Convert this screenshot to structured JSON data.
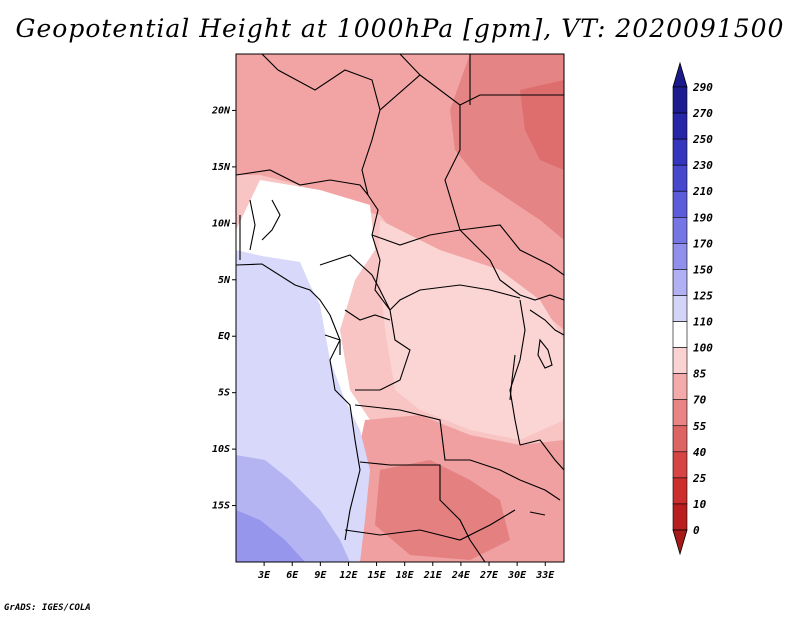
{
  "title": "Geopotential Height at 1000hPa [gpm], VT: 2020091500",
  "credit": "GrADS: IGES/COLA",
  "map": {
    "lat_labels": [
      "20N",
      "15N",
      "10N",
      "5N",
      "EQ",
      "5S",
      "10S",
      "15S"
    ],
    "lat_values": [
      20,
      15,
      10,
      5,
      0,
      -5,
      -10,
      -15
    ],
    "lon_labels": [
      "3E",
      "6E",
      "9E",
      "12E",
      "15E",
      "18E",
      "21E",
      "24E",
      "27E",
      "30E",
      "33E"
    ],
    "lon_values": [
      3,
      6,
      9,
      12,
      15,
      18,
      21,
      24,
      27,
      30,
      33
    ],
    "lon_range": [
      0,
      35
    ],
    "lat_range": [
      -20,
      25
    ]
  },
  "colorbar": {
    "labels": [
      "290",
      "270",
      "250",
      "230",
      "210",
      "190",
      "170",
      "150",
      "125",
      "110",
      "100",
      "85",
      "70",
      "55",
      "40",
      "25",
      "10",
      "0"
    ],
    "colors_top_to_bottom": [
      "#1c1c8e",
      "#2626a8",
      "#3535bd",
      "#4848ce",
      "#5d5ddb",
      "#7575e4",
      "#9090ec",
      "#b0b0f2",
      "#d4d4f8",
      "#ffffff",
      "#fbd2d2",
      "#f4aaaa",
      "#e88484",
      "#de6464",
      "#d64444",
      "#cc2e2e",
      "#b81e1e"
    ],
    "arrow_top_color": "#1a1a8a",
    "arrow_bottom_color": "#a81a1a"
  }
}
